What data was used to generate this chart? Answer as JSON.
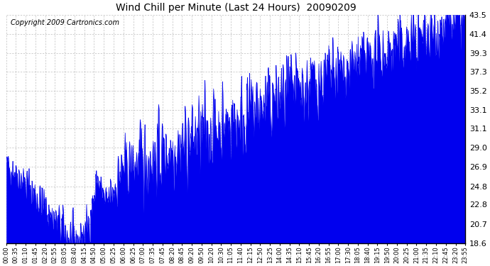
{
  "title": "Wind Chill per Minute (Last 24 Hours)  20090209",
  "copyright_text": "Copyright 2009 Cartronics.com",
  "line_color": "#0000EE",
  "fill_color": "#0000EE",
  "background_color": "#ffffff",
  "grid_color": "#aaaaaa",
  "ylim": [
    18.6,
    43.5
  ],
  "yticks": [
    18.6,
    20.7,
    22.8,
    24.8,
    26.9,
    29.0,
    31.1,
    33.1,
    35.2,
    37.3,
    39.3,
    41.4,
    43.5
  ],
  "xtick_labels": [
    "00:00",
    "00:35",
    "01:10",
    "01:45",
    "02:20",
    "02:55",
    "03:05",
    "03:40",
    "04:15",
    "04:50",
    "05:00",
    "05:25",
    "06:00",
    "06:25",
    "07:00",
    "07:35",
    "07:45",
    "08:20",
    "08:45",
    "09:20",
    "09:50",
    "10:20",
    "10:30",
    "11:05",
    "11:40",
    "12:15",
    "12:50",
    "13:25",
    "14:00",
    "14:35",
    "15:10",
    "15:45",
    "16:20",
    "16:55",
    "17:00",
    "17:30",
    "18:05",
    "18:40",
    "19:15",
    "19:50",
    "20:00",
    "20:25",
    "21:00",
    "21:35",
    "22:10",
    "22:45",
    "23:20",
    "23:55"
  ],
  "num_points": 1440,
  "seed": 42,
  "title_fontsize": 10,
  "ytick_fontsize": 8,
  "xtick_fontsize": 6,
  "copyright_fontsize": 7
}
